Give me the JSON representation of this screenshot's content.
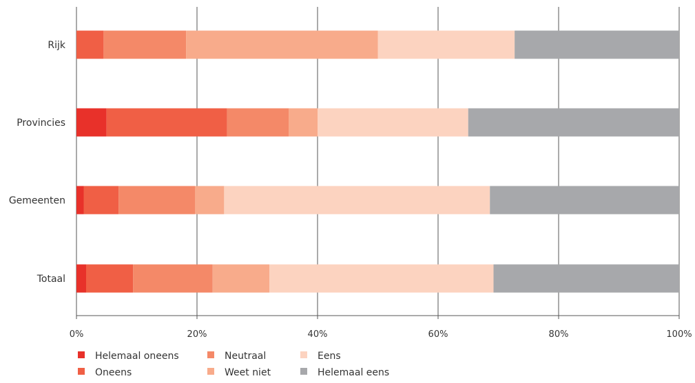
{
  "chart_data": {
    "type": "bar",
    "orientation": "horizontal",
    "stacked": true,
    "categories": [
      "Rijk",
      "Provincies",
      "Gemeenten",
      "Totaal"
    ],
    "series": [
      {
        "name": "Helemaal oneens",
        "color": "#e8312a",
        "values": [
          0,
          5,
          1.2,
          1.6
        ]
      },
      {
        "name": "Oneens",
        "color": "#f05f45",
        "values": [
          4.5,
          20,
          5.8,
          7.8
        ]
      },
      {
        "name": "Neutraal",
        "color": "#f48968",
        "values": [
          13.7,
          10.2,
          12.7,
          13.2
        ]
      },
      {
        "name": "Weet niet",
        "color": "#f8ab8b",
        "values": [
          31.8,
          4.8,
          4.8,
          9.4
        ]
      },
      {
        "name": "Eens",
        "color": "#fcd3c0",
        "values": [
          22.7,
          25.0,
          44.1,
          37.2
        ]
      },
      {
        "name": "Helemaal eens",
        "color": "#a7a8ab",
        "values": [
          27.3,
          35.0,
          31.4,
          30.8
        ]
      }
    ],
    "xlim": [
      0,
      100
    ],
    "xticks": [
      "0%",
      "20%",
      "40%",
      "60%",
      "80%",
      "100%"
    ],
    "xtick_values": [
      0,
      20,
      40,
      60,
      80,
      100
    ],
    "grid": "vertical",
    "legend": "bottom-left",
    "title": "",
    "xlabel": "",
    "ylabel": ""
  }
}
